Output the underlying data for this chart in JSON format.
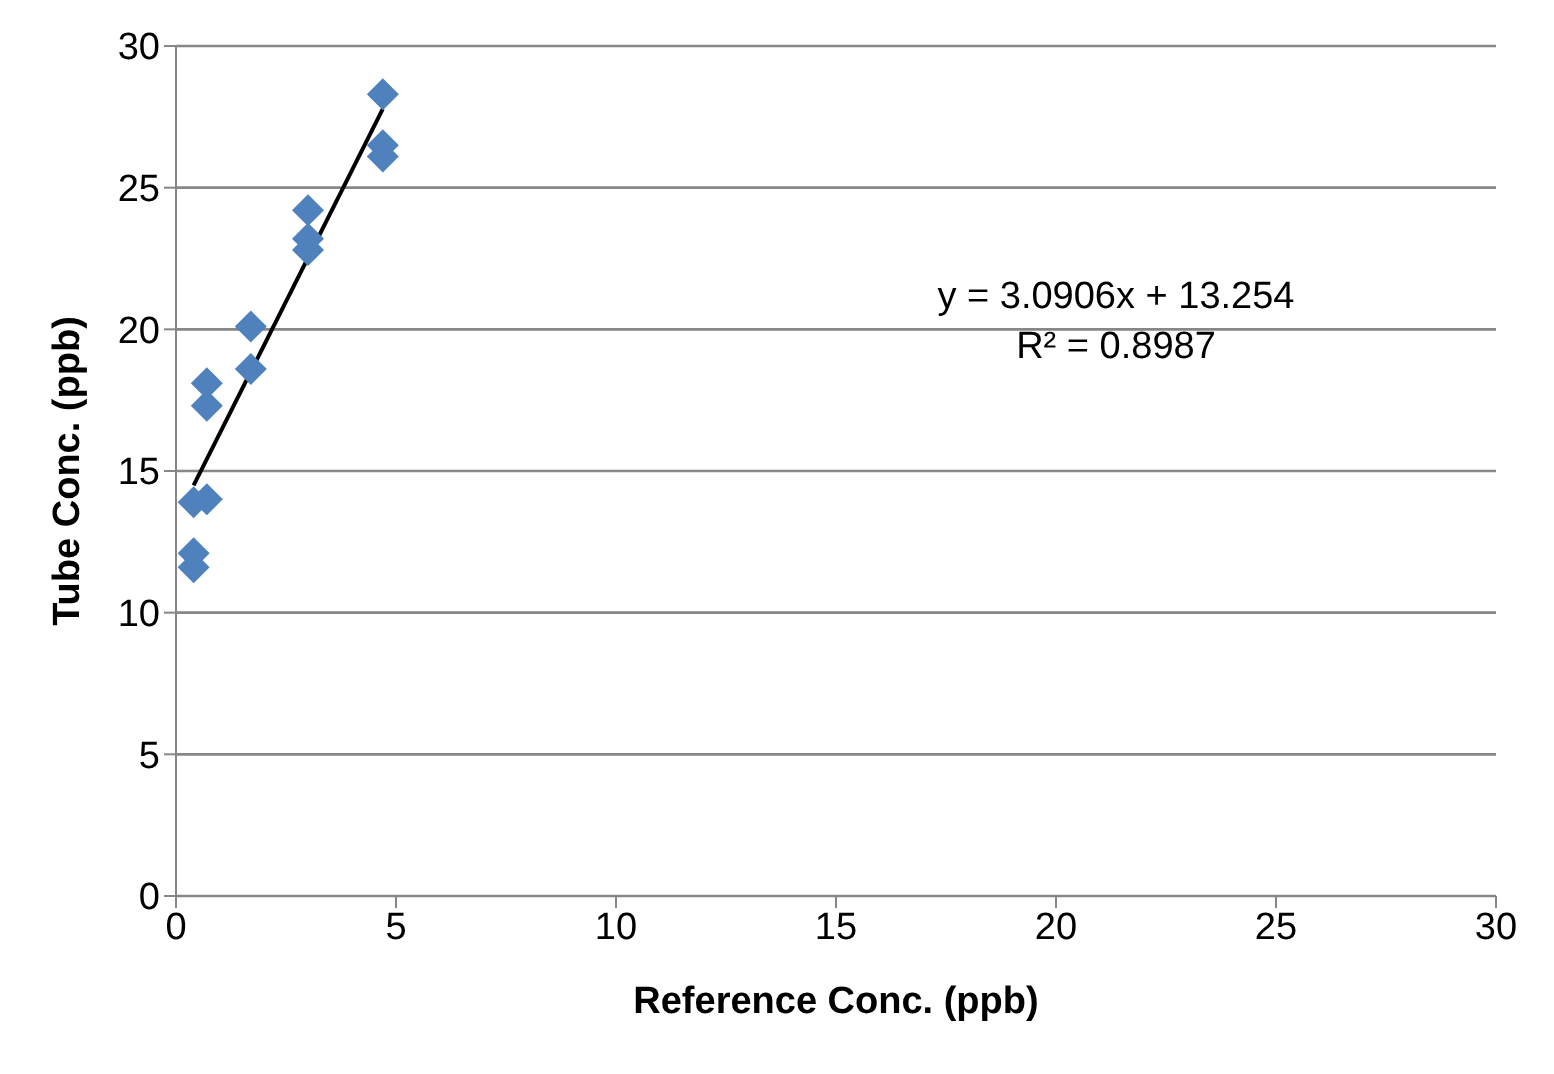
{
  "chart_data": {
    "type": "scatter",
    "xlabel": "Reference Conc. (ppb)",
    "ylabel": "Tube Conc. (ppb)",
    "xlim": [
      0,
      30
    ],
    "xticks": [
      0,
      5,
      10,
      15,
      20,
      25,
      30
    ],
    "ylim": [
      0,
      30
    ],
    "yticks": [
      0,
      5,
      10,
      15,
      20,
      25,
      30
    ],
    "grid": "y",
    "marker": "diamond",
    "legend": false,
    "annotations": [
      "y = 3.0906x + 13.254",
      "R² = 0.8987"
    ],
    "series": [
      {
        "color": "#4f81bd",
        "x": [
          0.4,
          0.4,
          0.4,
          0.7,
          0.7,
          0.7,
          1.7,
          1.7,
          3.0,
          3.0,
          3.0,
          4.7,
          4.7,
          4.7
        ],
        "values": [
          11.6,
          12.1,
          13.9,
          14.0,
          17.3,
          18.1,
          18.6,
          20.1,
          22.8,
          23.2,
          24.2,
          26.1,
          26.5,
          28.3
        ]
      },
      {
        "type": "line",
        "color": "#000000",
        "marker": "none",
        "x": [
          0.4,
          4.7
        ],
        "values": [
          14.49,
          27.78
        ]
      }
    ]
  }
}
